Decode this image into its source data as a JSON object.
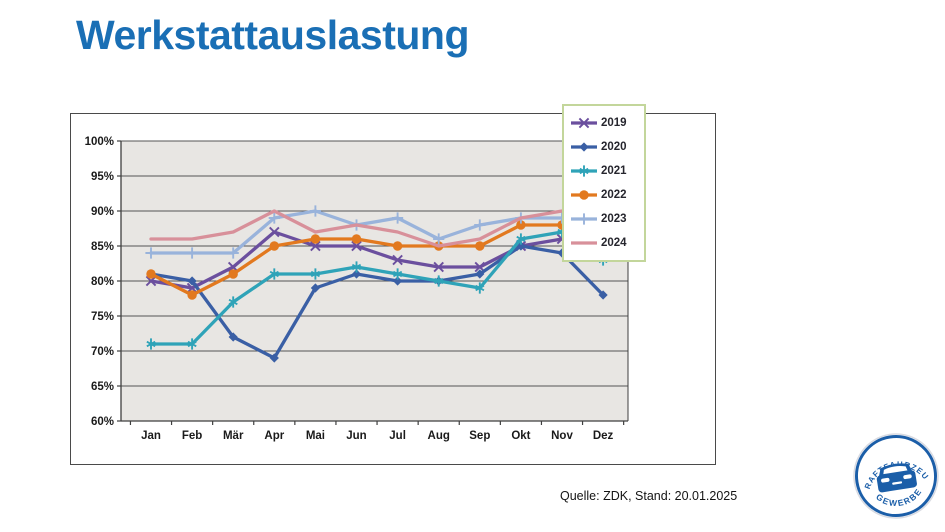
{
  "page": {
    "title": "Werkstattauslastung",
    "title_color": "#1a6fb5",
    "background": "#ffffff"
  },
  "source": {
    "text": "Quelle: ZDK, Stand: 20.01.2025"
  },
  "logo": {
    "top_text": "KRAFTFAHRZEUG",
    "bottom_text": "GEWERBE",
    "blue": "#1b5ea8",
    "icon": "car-front-icon"
  },
  "chart": {
    "plot_background": "#e8e6e3",
    "grid_color": "#545454",
    "axis_color": "#3f3f3f",
    "legend_border_color": "#c3d69b",
    "tick_label_color": "#1a1a1a"
  },
  "chart_data": {
    "type": "line",
    "title": "Werkstattauslastung",
    "xlabel": "",
    "ylabel": "",
    "ylim": [
      60,
      100
    ],
    "ytick_step": 5,
    "ytick_labels": [
      "100%",
      "95%",
      "90%",
      "85%",
      "80%",
      "75%",
      "70%",
      "65%",
      "60%"
    ],
    "grid": "horizontal",
    "legend_position": "right",
    "categories": [
      "Jan",
      "Feb",
      "Mär",
      "Apr",
      "Mai",
      "Jun",
      "Jul",
      "Aug",
      "Sep",
      "Okt",
      "Nov",
      "Dez"
    ],
    "series": [
      {
        "name": "2019",
        "color": "#6b4f9e",
        "marker": "x",
        "values": [
          80,
          79,
          82,
          87,
          85,
          85,
          83,
          82,
          82,
          85,
          86,
          84
        ]
      },
      {
        "name": "2020",
        "color": "#3a5fa5",
        "marker": "diamond",
        "values": [
          81,
          80,
          72,
          69,
          79,
          81,
          80,
          80,
          81,
          85,
          84,
          78
        ]
      },
      {
        "name": "2021",
        "color": "#2fa3b8",
        "marker": "asterisk",
        "values": [
          71,
          71,
          77,
          81,
          81,
          82,
          81,
          80,
          79,
          86,
          87,
          83
        ]
      },
      {
        "name": "2022",
        "color": "#e2791f",
        "marker": "circle",
        "values": [
          81,
          78,
          81,
          85,
          86,
          86,
          85,
          85,
          85,
          88,
          88,
          86
        ]
      },
      {
        "name": "2023",
        "color": "#99b3db",
        "marker": "plus",
        "values": [
          84,
          84,
          84,
          89,
          90,
          88,
          89,
          86,
          88,
          89,
          89,
          88
        ]
      },
      {
        "name": "2024",
        "color": "#d8909a",
        "marker": "none",
        "values": [
          86,
          86,
          87,
          90,
          87,
          88,
          87,
          85,
          86,
          89,
          90,
          89
        ]
      }
    ]
  }
}
